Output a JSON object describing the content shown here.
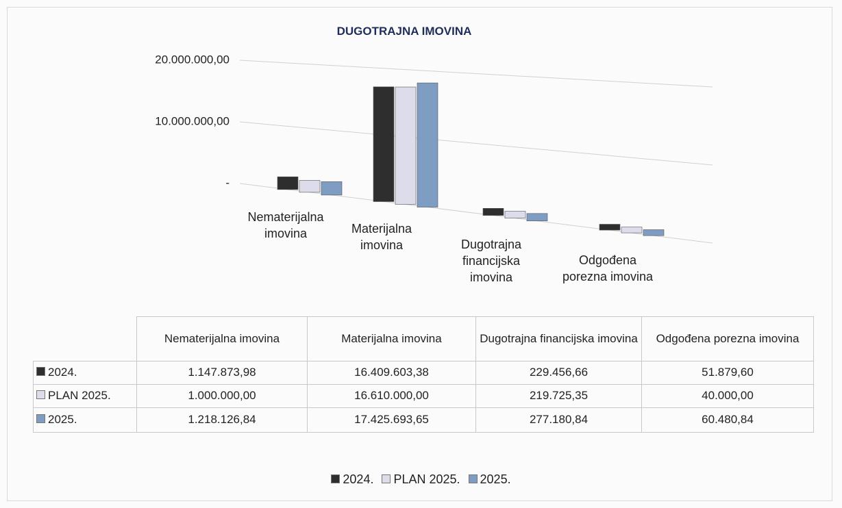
{
  "chart_data": {
    "type": "bar",
    "title": "DUGOTRAJNA IMOVINA",
    "categories": [
      "Nematerijalna imovina",
      "Materijalna imovina",
      "Dugotrajna financijska imovina",
      "Odgođena porezna imovina"
    ],
    "series": [
      {
        "name": "2024.",
        "color": "#2e2e2e",
        "values": [
          1147873.98,
          16409603.38,
          229456.66,
          51879.6
        ],
        "value_labels": [
          "1.147.873,98",
          "16.409.603,38",
          "229.456,66",
          "51.879,60"
        ]
      },
      {
        "name": "PLAN 2025.",
        "color": "#dcdcea",
        "values": [
          1000000.0,
          16610000.0,
          219725.35,
          40000.0
        ],
        "value_labels": [
          "1.000.000,00",
          "16.610.000,00",
          "219.725,35",
          "40.000,00"
        ]
      },
      {
        "name": "2025.",
        "color": "#7f9cc2",
        "values": [
          1218126.84,
          17425693.65,
          277180.84,
          60480.84
        ],
        "value_labels": [
          "1.218.126,84",
          "17.425.693,65",
          "277.180,84",
          "60.480,84"
        ]
      }
    ],
    "ylim": [
      0,
      20000000
    ],
    "yticks": [
      {
        "value": 0,
        "label": "-"
      },
      {
        "value": 10000000,
        "label": "10.000.000,00"
      },
      {
        "value": 20000000,
        "label": "20.000.000,00"
      }
    ],
    "grid": true,
    "legend": "bottom"
  }
}
